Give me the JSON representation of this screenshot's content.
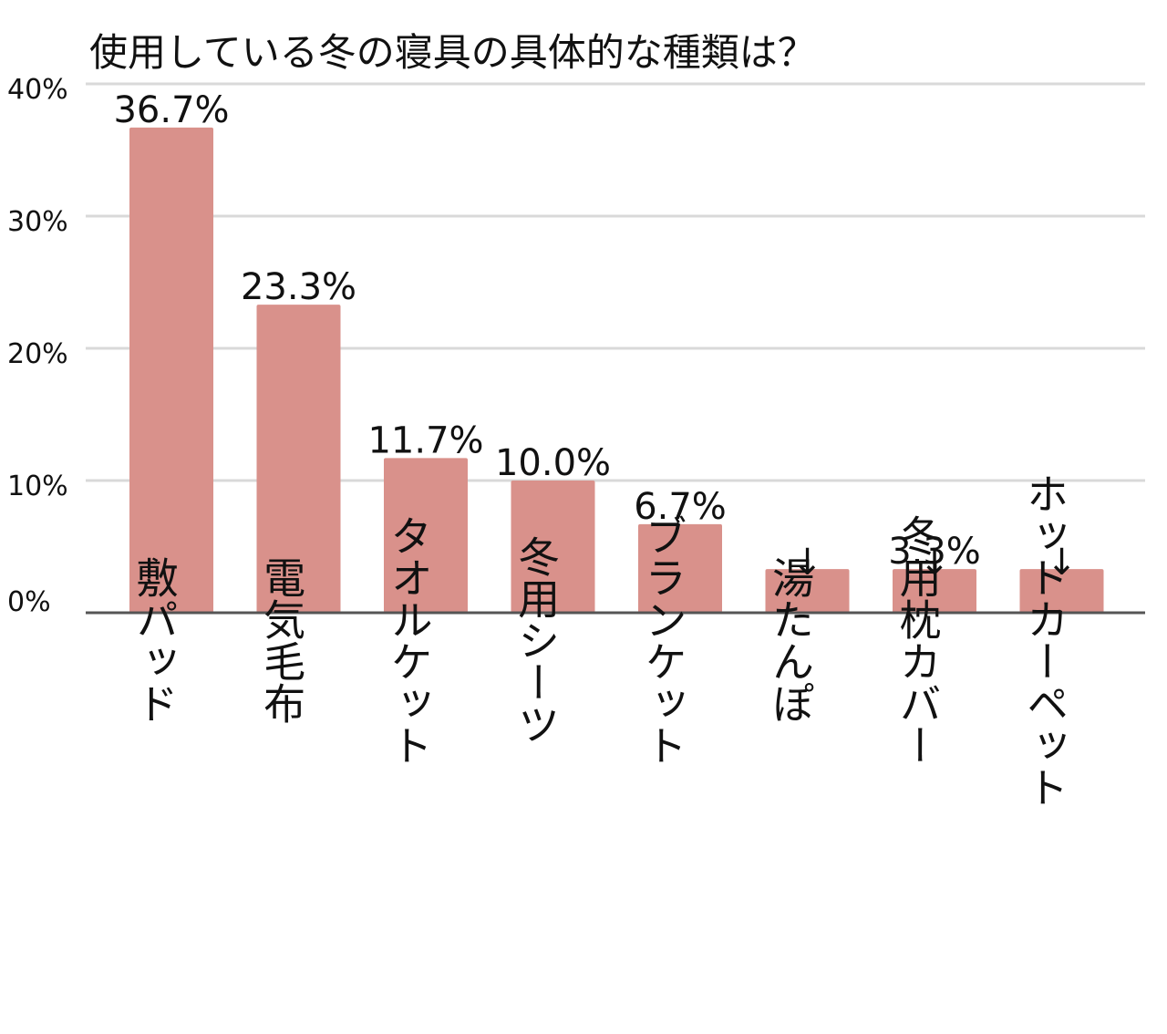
{
  "chart_data": {
    "type": "bar",
    "title": "使用している冬の寝具の具体的な種類は？",
    "xlabel": "",
    "ylabel": "",
    "ylim": [
      0,
      40
    ],
    "y_ticks": [
      "0%",
      "10%",
      "20%",
      "30%",
      "40%"
    ],
    "grid": true,
    "categories": [
      "敷パッド",
      "電気毛布",
      "タオルケット",
      "冬用シーツ",
      "ブランケット",
      "湯たんぽ",
      "冬用枕カバー",
      "ホットカーペット"
    ],
    "values": [
      36.7,
      23.3,
      11.7,
      10.0,
      6.7,
      3.3,
      3.3,
      3.3
    ],
    "value_labels": [
      "36.7%",
      "23.3%",
      "11.7%",
      "10.0%",
      "6.7%",
      "",
      "3.3%",
      ""
    ],
    "pointer_markers": [
      "",
      "",
      "",
      "",
      "",
      "↓",
      "↓",
      "↓"
    ],
    "colors": {
      "bar": "#d9918b",
      "grid": "#d9d9d9",
      "axis": "#555555",
      "text": "#111111"
    }
  }
}
